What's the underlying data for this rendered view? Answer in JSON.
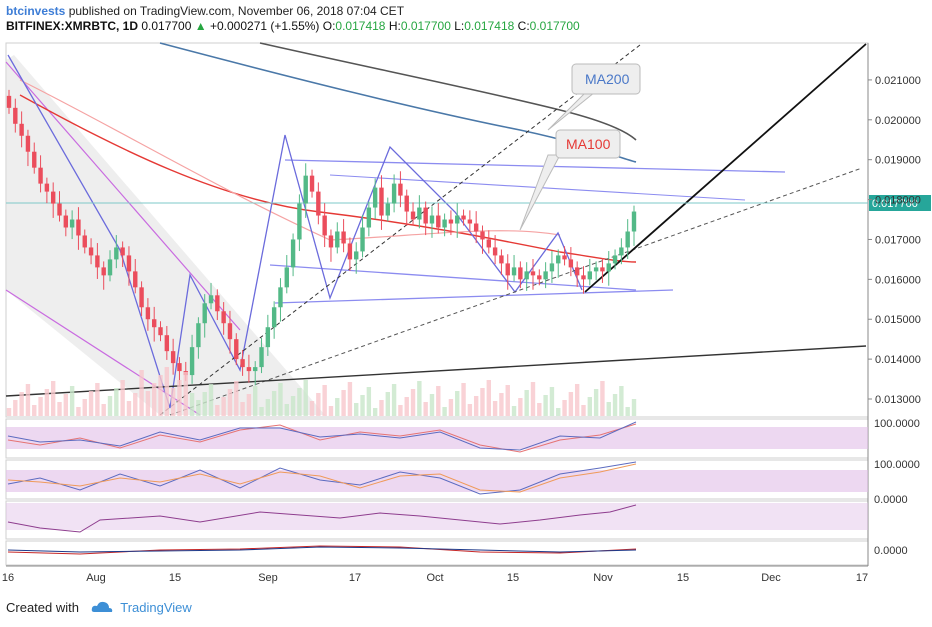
{
  "header": {
    "author": "btcinvests",
    "published": "published on TradingView.com, November 06, 2018 07:04 CET",
    "symbol": "BITFINEX:XMRBTC, 1D",
    "last": "0.017700",
    "change": "+0.000271 (+1.55%)",
    "o_label": "O:",
    "o_value": "0.017418",
    "h_label": "H:",
    "h_value": "0.017700",
    "l_label": "L:",
    "l_value": "0.017418",
    "c_label": "C:",
    "c_value": "0.017700"
  },
  "footer": {
    "created": "Created with",
    "brand": "TradingView"
  },
  "annotations": {
    "ma200": "MA200",
    "ma100": "MA100"
  },
  "colors": {
    "up": "#53b987",
    "down": "#eb4d5c",
    "ma200": "#4a78a8",
    "ma100": "#e53935",
    "band": "#e1bee7"
  },
  "chart_data": {
    "type": "candlestick",
    "price_axis": [
      "0.021000",
      "0.020000",
      "0.019000",
      "0.018000",
      "0.017000",
      "0.016000",
      "0.015000",
      "0.014000",
      "0.013000"
    ],
    "last_price_label": "0.017700",
    "ylim": [
      0.0129,
      0.0217
    ],
    "x_tick_labels": [
      "16",
      "Aug",
      "15",
      "Sep",
      "17",
      "Oct",
      "15",
      "Nov",
      "15",
      "Dec",
      "17"
    ],
    "indicator_labels": [
      "100.0000",
      "100.0000",
      "0.0000",
      "0.0000"
    ],
    "candles_close": [
      0.0203,
      0.0199,
      0.0196,
      0.0192,
      0.0188,
      0.0184,
      0.0182,
      0.0179,
      0.0176,
      0.0173,
      0.0175,
      0.0171,
      0.0168,
      0.0166,
      0.0163,
      0.0161,
      0.0165,
      0.0168,
      0.0166,
      0.0162,
      0.0158,
      0.0153,
      0.015,
      0.0148,
      0.0146,
      0.0142,
      0.0139,
      0.0137,
      0.0136,
      0.0143,
      0.0149,
      0.0154,
      0.0156,
      0.0152,
      0.0149,
      0.0145,
      0.014,
      0.0138,
      0.0137,
      0.0138,
      0.0143,
      0.0148,
      0.0153,
      0.0158,
      0.0163,
      0.017,
      0.0179,
      0.0186,
      0.0182,
      0.0176,
      0.0171,
      0.0168,
      0.0172,
      0.0169,
      0.0165,
      0.0167,
      0.0173,
      0.0178,
      0.0183,
      0.0176,
      0.0179,
      0.0184,
      0.0181,
      0.0177,
      0.0175,
      0.0178,
      0.0174,
      0.0176,
      0.0173,
      0.0175,
      0.0174,
      0.0176,
      0.0175,
      0.0174,
      0.0172,
      0.017,
      0.0168,
      0.0166,
      0.0164,
      0.0161,
      0.0163,
      0.016,
      0.0162,
      0.0161,
      0.016,
      0.0162,
      0.0164,
      0.0166,
      0.0165,
      0.0163,
      0.0161,
      0.016,
      0.0162,
      0.0163,
      0.0162,
      0.0164,
      0.0166,
      0.0168,
      0.0172,
      0.0177
    ]
  }
}
